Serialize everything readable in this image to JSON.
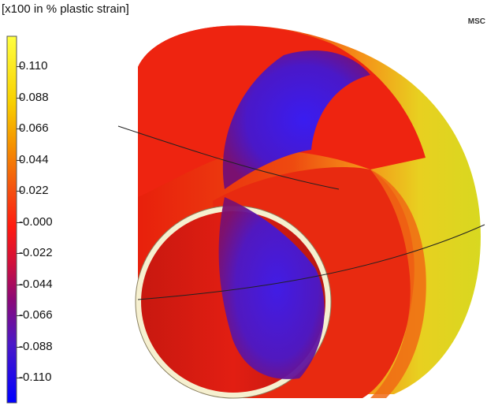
{
  "legend": {
    "title": "[x100 in % plastic strain]",
    "labels": [
      "0.110",
      "0.088",
      "0.066",
      "0.044",
      "0.022",
      "-0.000",
      "-0.022",
      "-0.044",
      "-0.066",
      "-0.088",
      "-0.110"
    ],
    "colors": {
      "top": "#ffff00",
      "high": "#f0c000",
      "mid_high": "#f08020",
      "zero": "#ff2010",
      "mid_low": "#a00060",
      "low": "#5010c0",
      "bottom": "#0000ff"
    }
  },
  "logo": {
    "text": "MSC"
  }
}
